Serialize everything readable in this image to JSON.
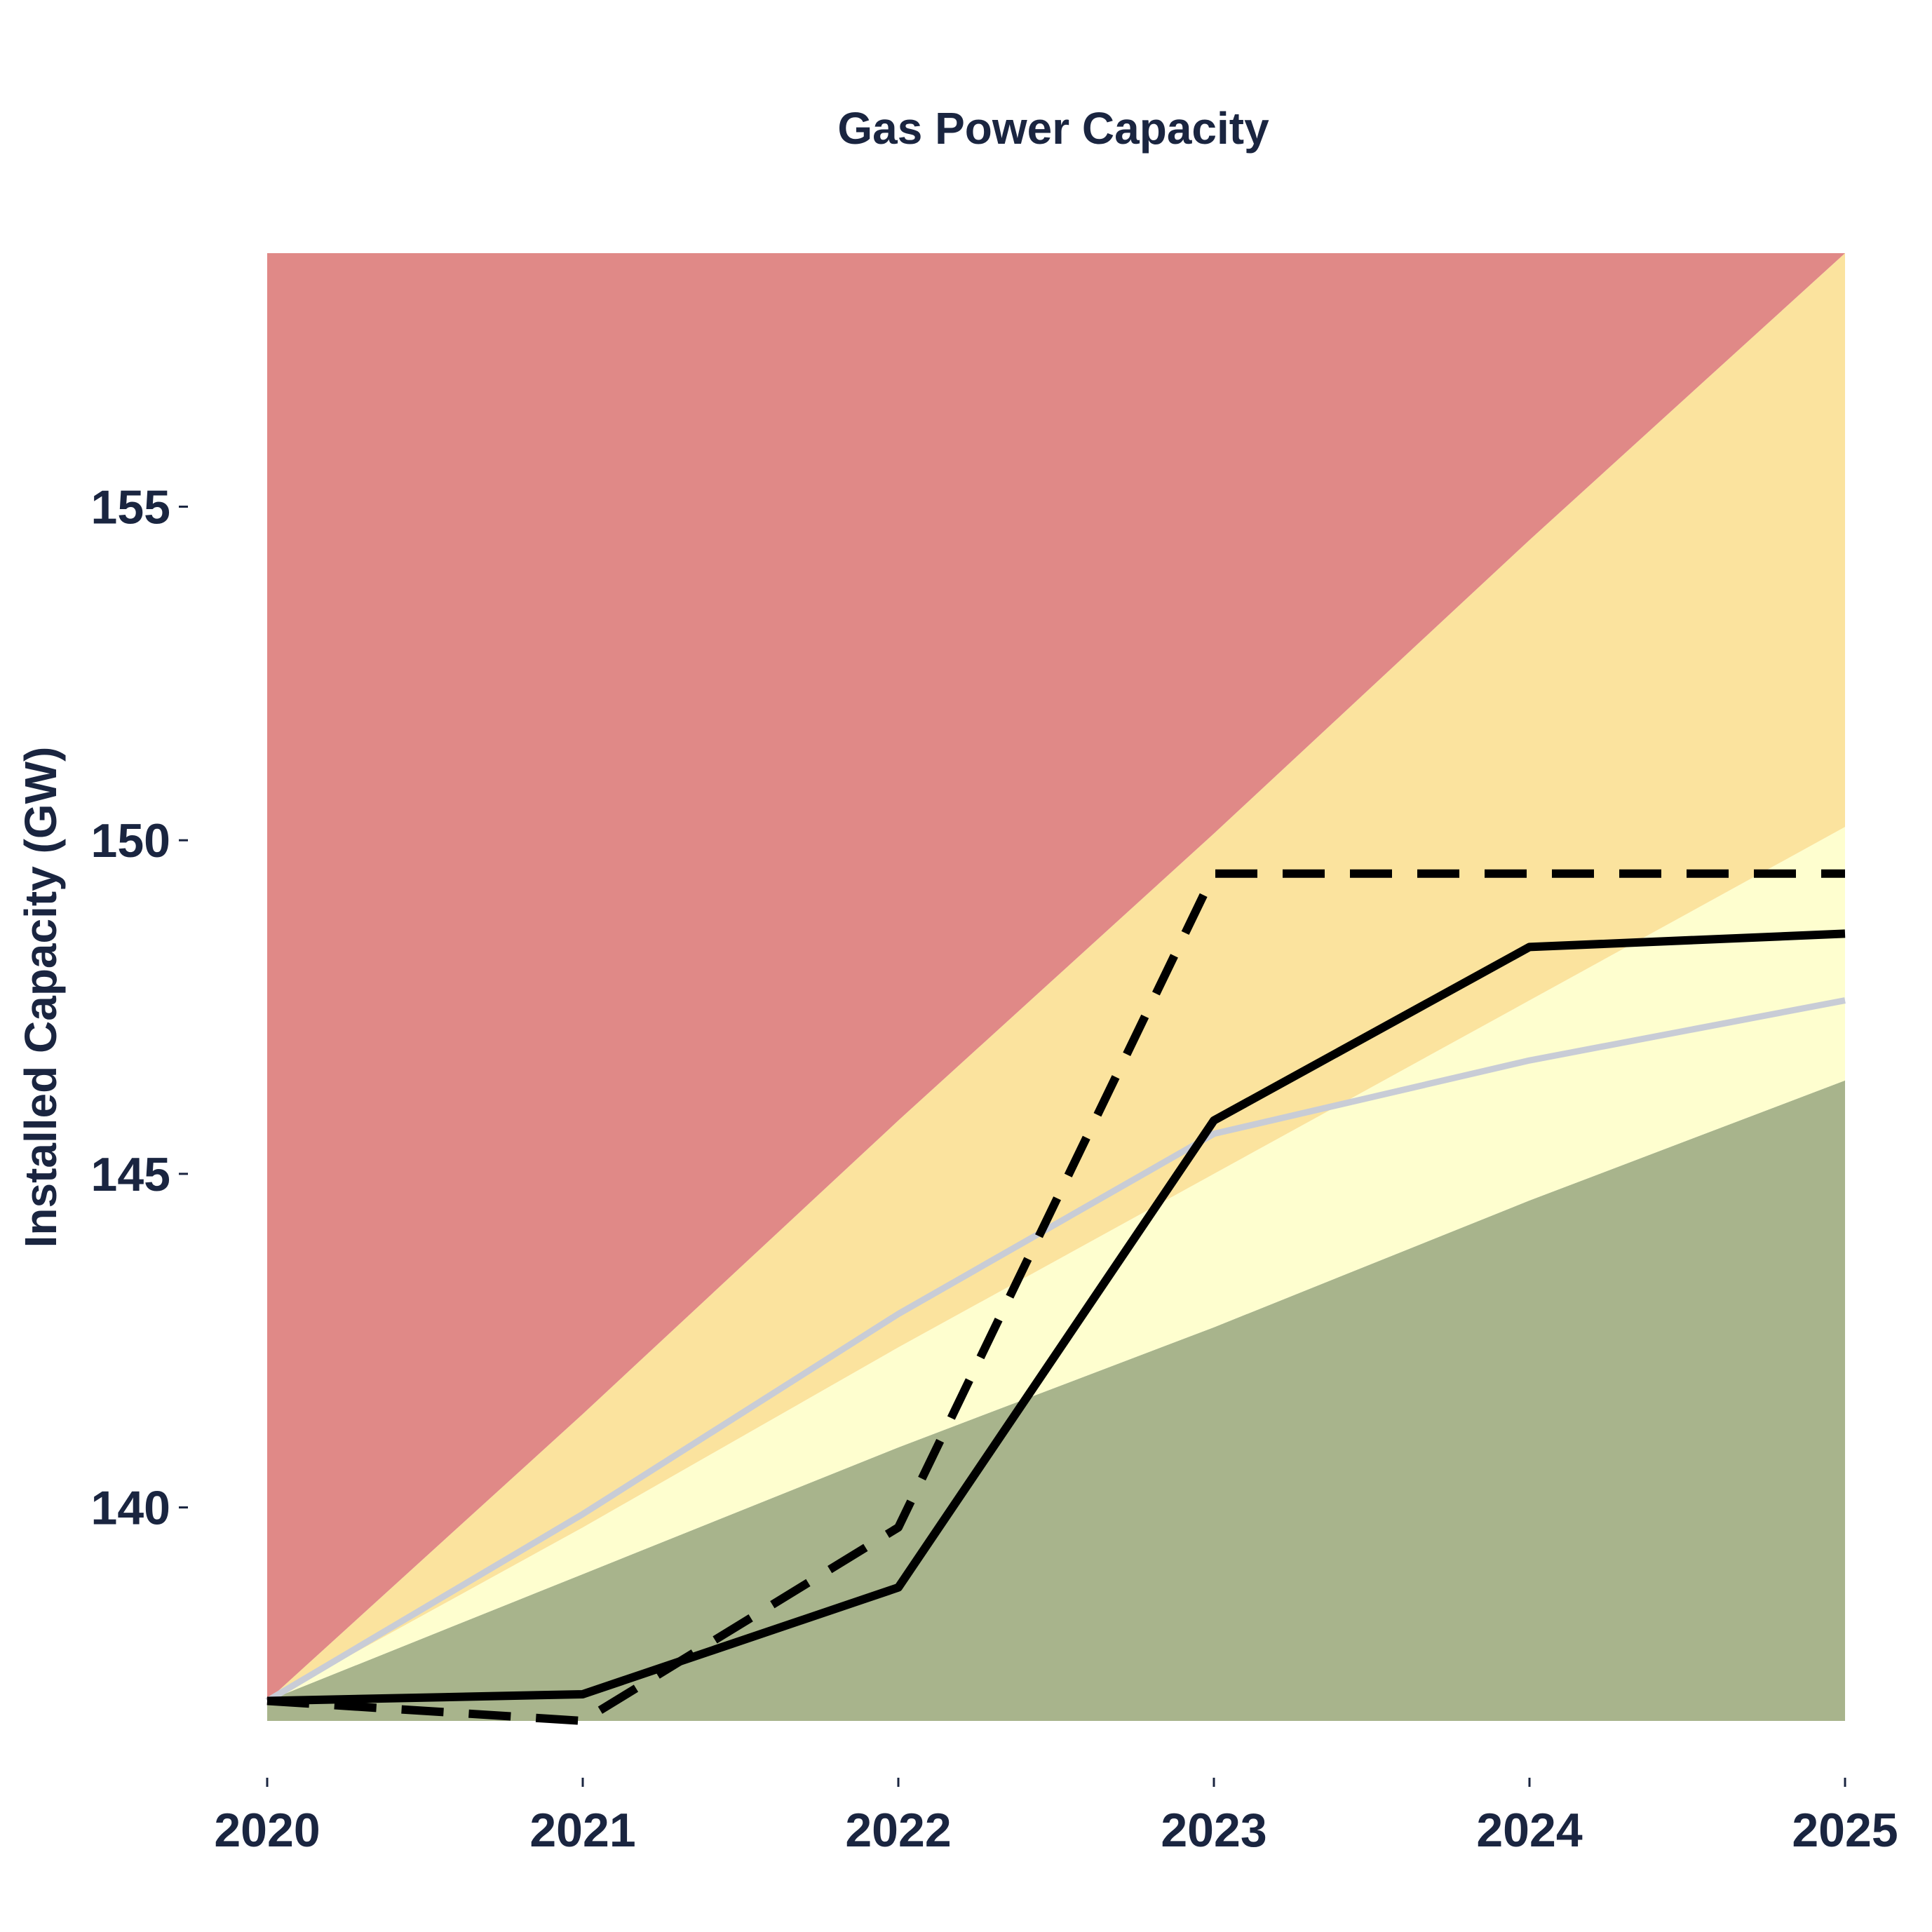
{
  "chart_data": {
    "type": "line",
    "title": "Gas Power Capacity",
    "xlabel": "",
    "ylabel": "Installed Capacity (GW)",
    "x": [
      2020,
      2021,
      2022,
      2023,
      2024,
      2025
    ],
    "xlim": [
      2020,
      2025
    ],
    "ylim": [
      136.8,
      158.8
    ],
    "yticks": [
      140,
      145,
      150,
      155
    ],
    "grid": false,
    "legend": "none",
    "bands": [
      {
        "color": "#a8b48c",
        "lower": [
          136.8,
          136.8,
          136.8,
          136.8,
          136.8,
          136.8
        ],
        "upper": [
          137.1,
          139.0,
          140.9,
          142.7,
          144.6,
          146.4
        ]
      },
      {
        "color": "#fefecf",
        "lower": [
          137.1,
          139.0,
          140.9,
          142.7,
          144.6,
          146.4
        ],
        "upper": [
          137.1,
          139.7,
          142.4,
          145.0,
          147.6,
          150.2
        ]
      },
      {
        "color": "#fbe39e",
        "lower": [
          137.1,
          139.7,
          142.4,
          145.0,
          147.6,
          150.2
        ],
        "upper": [
          137.1,
          141.4,
          145.8,
          150.1,
          154.5,
          158.8
        ]
      },
      {
        "color": "#e08987",
        "lower": [
          137.1,
          141.4,
          145.8,
          150.1,
          154.5,
          158.8
        ],
        "upper": [
          158.8,
          158.8,
          158.8,
          158.8,
          158.8,
          158.8
        ]
      }
    ],
    "series": [
      {
        "style": "solid",
        "color": "#c8ccd6",
        "values": [
          137.1,
          139.9,
          142.9,
          145.6,
          146.7,
          147.6
        ]
      },
      {
        "style": "solid",
        "color": "#000000",
        "values": [
          137.1,
          137.2,
          138.8,
          145.8,
          148.4,
          148.6
        ]
      },
      {
        "style": "dashed",
        "color": "#000000",
        "values": [
          137.1,
          136.8,
          139.7,
          149.5,
          149.5,
          149.5
        ]
      }
    ]
  }
}
